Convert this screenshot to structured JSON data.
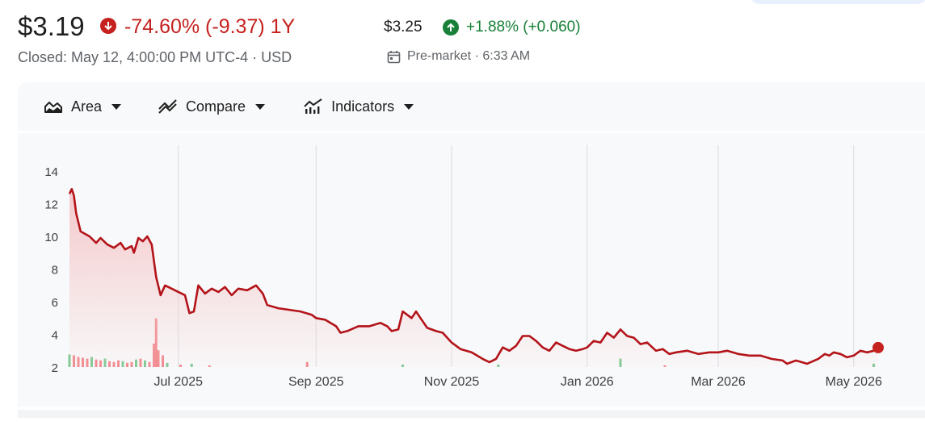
{
  "quote": {
    "price": "$3.19",
    "change": "-74.60% (-9.37) 1Y",
    "closed_line": "Closed: May 12, 4:00:00 PM UTC-4 · USD",
    "premarket_price": "$3.25",
    "premarket_change": "+1.88% (+0.060)",
    "premarket_label": "Pre-market · 6:33 AM"
  },
  "toolbar": {
    "area_label": "Area",
    "compare_label": "Compare",
    "indicators_label": "Indicators"
  },
  "colors": {
    "negative": "#c5221f",
    "positive": "#188038",
    "line": "#b3141a",
    "fill": "#f4c7c9",
    "volume_down": "#f28b90",
    "volume_up": "#81c995"
  },
  "icons": {
    "change_down": "arrow-down-circle-icon",
    "premarket_up": "arrow-up-circle-icon",
    "calendar": "calendar-icon",
    "area": "area-chart-icon",
    "compare": "compare-icon",
    "indicators": "indicators-icon"
  },
  "chart_data": {
    "type": "area",
    "title": "",
    "xlabel": "",
    "ylabel": "",
    "ylim": [
      2,
      14
    ],
    "yticks": [
      2,
      4,
      6,
      8,
      10,
      12,
      14
    ],
    "xlim": [
      "2025-05-13",
      "2026-05-12"
    ],
    "xticks": [
      {
        "date": "2025-07-01",
        "label": "Jul 2025"
      },
      {
        "date": "2025-09-01",
        "label": "Sep 2025"
      },
      {
        "date": "2025-11-01",
        "label": "Nov 2025"
      },
      {
        "date": "2026-01-01",
        "label": "Jan 2026"
      },
      {
        "date": "2026-03-01",
        "label": "Mar 2026"
      },
      {
        "date": "2026-05-01",
        "label": "May 2026"
      }
    ],
    "grid": "vertical",
    "series": [
      {
        "points": [
          [
            "2025-05-13",
            12.6
          ],
          [
            "2025-05-14",
            12.9
          ],
          [
            "2025-05-15",
            12.5
          ],
          [
            "2025-05-16",
            11.4
          ],
          [
            "2025-05-18",
            10.3
          ],
          [
            "2025-05-22",
            10.0
          ],
          [
            "2025-05-25",
            9.6
          ],
          [
            "2025-05-27",
            9.9
          ],
          [
            "2025-05-30",
            9.5
          ],
          [
            "2025-06-02",
            9.3
          ],
          [
            "2025-06-05",
            9.6
          ],
          [
            "2025-06-07",
            9.2
          ],
          [
            "2025-06-10",
            9.4
          ],
          [
            "2025-06-11",
            9.0
          ],
          [
            "2025-06-13",
            9.9
          ],
          [
            "2025-06-15",
            9.7
          ],
          [
            "2025-06-17",
            10.0
          ],
          [
            "2025-06-19",
            9.5
          ],
          [
            "2025-06-21",
            7.5
          ],
          [
            "2025-06-23",
            6.4
          ],
          [
            "2025-06-25",
            7.0
          ],
          [
            "2025-06-28",
            6.8
          ],
          [
            "2025-07-01",
            6.6
          ],
          [
            "2025-07-04",
            6.4
          ],
          [
            "2025-07-06",
            5.3
          ],
          [
            "2025-07-08",
            5.4
          ],
          [
            "2025-07-10",
            7.0
          ],
          [
            "2025-07-13",
            6.5
          ],
          [
            "2025-07-16",
            6.8
          ],
          [
            "2025-07-19",
            6.6
          ],
          [
            "2025-07-22",
            6.9
          ],
          [
            "2025-07-25",
            6.4
          ],
          [
            "2025-07-28",
            6.8
          ],
          [
            "2025-08-01",
            6.7
          ],
          [
            "2025-08-05",
            7.0
          ],
          [
            "2025-08-08",
            6.5
          ],
          [
            "2025-08-10",
            5.8
          ],
          [
            "2025-08-15",
            5.6
          ],
          [
            "2025-08-20",
            5.5
          ],
          [
            "2025-08-25",
            5.4
          ],
          [
            "2025-08-30",
            5.2
          ],
          [
            "2025-09-01",
            5.0
          ],
          [
            "2025-09-05",
            4.9
          ],
          [
            "2025-09-10",
            4.5
          ],
          [
            "2025-09-12",
            4.1
          ],
          [
            "2025-09-15",
            4.2
          ],
          [
            "2025-09-20",
            4.5
          ],
          [
            "2025-09-25",
            4.5
          ],
          [
            "2025-09-30",
            4.7
          ],
          [
            "2025-10-03",
            4.5
          ],
          [
            "2025-10-05",
            4.2
          ],
          [
            "2025-10-08",
            4.3
          ],
          [
            "2025-10-10",
            5.4
          ],
          [
            "2025-10-12",
            5.2
          ],
          [
            "2025-10-14",
            5.0
          ],
          [
            "2025-10-16",
            5.4
          ],
          [
            "2025-10-18",
            5.0
          ],
          [
            "2025-10-21",
            4.4
          ],
          [
            "2025-10-25",
            4.2
          ],
          [
            "2025-10-28",
            4.1
          ],
          [
            "2025-11-01",
            3.5
          ],
          [
            "2025-11-05",
            3.1
          ],
          [
            "2025-11-10",
            2.9
          ],
          [
            "2025-11-15",
            2.5
          ],
          [
            "2025-11-18",
            2.3
          ],
          [
            "2025-11-21",
            2.5
          ],
          [
            "2025-11-24",
            3.2
          ],
          [
            "2025-11-27",
            3.0
          ],
          [
            "2025-11-30",
            3.3
          ],
          [
            "2025-12-03",
            3.9
          ],
          [
            "2025-12-06",
            3.9
          ],
          [
            "2025-12-09",
            3.6
          ],
          [
            "2025-12-12",
            3.2
          ],
          [
            "2025-12-15",
            3.0
          ],
          [
            "2025-12-18",
            3.5
          ],
          [
            "2025-12-21",
            3.3
          ],
          [
            "2025-12-24",
            3.1
          ],
          [
            "2025-12-27",
            3.0
          ],
          [
            "2025-12-30",
            3.1
          ],
          [
            "2026-01-01",
            3.2
          ],
          [
            "2026-01-04",
            3.6
          ],
          [
            "2026-01-07",
            3.5
          ],
          [
            "2026-01-10",
            4.1
          ],
          [
            "2026-01-13",
            3.8
          ],
          [
            "2026-01-16",
            4.3
          ],
          [
            "2026-01-19",
            3.9
          ],
          [
            "2026-01-22",
            3.8
          ],
          [
            "2026-01-25",
            3.4
          ],
          [
            "2026-01-28",
            3.5
          ],
          [
            "2026-02-01",
            3.0
          ],
          [
            "2026-02-04",
            3.1
          ],
          [
            "2026-02-07",
            2.8
          ],
          [
            "2026-02-10",
            2.9
          ],
          [
            "2026-02-15",
            3.0
          ],
          [
            "2026-02-20",
            2.8
          ],
          [
            "2026-02-25",
            2.9
          ],
          [
            "2026-03-01",
            2.9
          ],
          [
            "2026-03-05",
            3.0
          ],
          [
            "2026-03-10",
            2.8
          ],
          [
            "2026-03-15",
            2.7
          ],
          [
            "2026-03-20",
            2.7
          ],
          [
            "2026-03-25",
            2.5
          ],
          [
            "2026-03-30",
            2.4
          ],
          [
            "2026-04-01",
            2.2
          ],
          [
            "2026-04-05",
            2.4
          ],
          [
            "2026-04-10",
            2.2
          ],
          [
            "2026-04-15",
            2.5
          ],
          [
            "2026-04-18",
            2.8
          ],
          [
            "2026-04-20",
            2.7
          ],
          [
            "2026-04-22",
            2.9
          ],
          [
            "2026-04-25",
            2.8
          ],
          [
            "2026-04-28",
            2.6
          ],
          [
            "2026-05-01",
            2.7
          ],
          [
            "2026-05-04",
            3.0
          ],
          [
            "2026-05-07",
            2.9
          ],
          [
            "2026-05-10",
            3.0
          ],
          [
            "2026-05-12",
            3.19
          ]
        ]
      }
    ],
    "volume_bars": {
      "note": "relative heights",
      "points": [
        [
          "2025-05-13",
          0.15,
          "up"
        ],
        [
          "2025-05-15",
          0.14,
          "down"
        ],
        [
          "2025-05-17",
          0.12,
          "down"
        ],
        [
          "2025-05-19",
          0.11,
          "down"
        ],
        [
          "2025-05-21",
          0.1,
          "down"
        ],
        [
          "2025-05-23",
          0.12,
          "up"
        ],
        [
          "2025-05-25",
          0.09,
          "down"
        ],
        [
          "2025-05-27",
          0.08,
          "down"
        ],
        [
          "2025-05-29",
          0.1,
          "up"
        ],
        [
          "2025-05-31",
          0.07,
          "down"
        ],
        [
          "2025-06-02",
          0.06,
          "down"
        ],
        [
          "2025-06-04",
          0.08,
          "down"
        ],
        [
          "2025-06-06",
          0.07,
          "up"
        ],
        [
          "2025-06-08",
          0.05,
          "down"
        ],
        [
          "2025-06-10",
          0.06,
          "down"
        ],
        [
          "2025-06-12",
          0.09,
          "up"
        ],
        [
          "2025-06-14",
          0.1,
          "down"
        ],
        [
          "2025-06-16",
          0.08,
          "up"
        ],
        [
          "2025-06-18",
          0.06,
          "down"
        ],
        [
          "2025-06-20",
          0.28,
          "down"
        ],
        [
          "2025-06-21",
          0.58,
          "down"
        ],
        [
          "2025-06-22",
          0.2,
          "down"
        ],
        [
          "2025-06-24",
          0.14,
          "down"
        ],
        [
          "2025-06-26",
          0.05,
          "up"
        ],
        [
          "2025-07-02",
          0.03,
          "down"
        ],
        [
          "2025-07-07",
          0.04,
          "up"
        ],
        [
          "2025-07-15",
          0.02,
          "down"
        ],
        [
          "2025-08-28",
          0.06,
          "down"
        ],
        [
          "2025-10-10",
          0.03,
          "up"
        ],
        [
          "2025-11-22",
          0.03,
          "up"
        ],
        [
          "2026-01-16",
          0.1,
          "up"
        ],
        [
          "2026-02-05",
          0.02,
          "down"
        ],
        [
          "2026-05-10",
          0.04,
          "up"
        ]
      ]
    }
  }
}
